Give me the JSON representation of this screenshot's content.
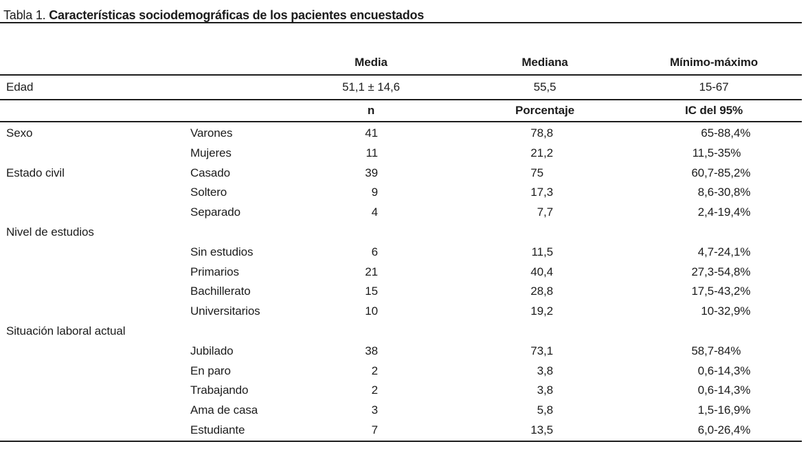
{
  "title": {
    "prefix": "Tabla 1.",
    "text": " Características sociodemográficas de los pacientes encuestados"
  },
  "stats_header": {
    "media": "Media",
    "mediana": "Mediana",
    "minmax": "Mínimo-máximo"
  },
  "edad_row": {
    "label": "Edad",
    "media": "51,1 ± 14,6",
    "mediana": "55,5",
    "minmax": "15-67"
  },
  "freq_header": {
    "n": "n",
    "porcentaje": "Porcentaje",
    "ic": "IC del 95%"
  },
  "rows": [
    {
      "category": "Sexo",
      "item": "Varones",
      "n": "41",
      "porcentaje": "78,8",
      "ic": "65-88,4%"
    },
    {
      "category": "",
      "item": "Mujeres",
      "n": "11",
      "porcentaje": "21,2",
      "ic": "11,5-35%"
    },
    {
      "category": "Estado civil",
      "item": "Casado",
      "n": "39",
      "porcentaje": "75",
      "ic": "60,7-85,2%"
    },
    {
      "category": "",
      "item": "Soltero",
      "n": "9",
      "porcentaje": "17,3",
      "ic": "8,6-30,8%"
    },
    {
      "category": "",
      "item": "Separado",
      "n": "4",
      "porcentaje": "7,7",
      "ic": "2,4-19,4%"
    },
    {
      "category": "Nivel de estudios",
      "item": "",
      "n": "",
      "porcentaje": "",
      "ic": ""
    },
    {
      "category": "",
      "item": "Sin estudios",
      "n": "6",
      "porcentaje": "11,5",
      "ic": "4,7-24,1%"
    },
    {
      "category": "",
      "item": "Primarios",
      "n": "21",
      "porcentaje": "40,4",
      "ic": "27,3-54,8%"
    },
    {
      "category": "",
      "item": "Bachillerato",
      "n": "15",
      "porcentaje": "28,8",
      "ic": "17,5-43,2%"
    },
    {
      "category": "",
      "item": "Universitarios",
      "n": "10",
      "porcentaje": "19,2",
      "ic": "10-32,9%"
    },
    {
      "category": "Situación laboral actual",
      "item": "",
      "n": "",
      "porcentaje": "",
      "ic": ""
    },
    {
      "category": "",
      "item": "Jubilado",
      "n": "38",
      "porcentaje": "73,1",
      "ic": "58,7-84%"
    },
    {
      "category": "",
      "item": "En paro",
      "n": "2",
      "porcentaje": "3,8",
      "ic": "0,6-14,3%"
    },
    {
      "category": "",
      "item": "Trabajando",
      "n": "2",
      "porcentaje": "3,8",
      "ic": "0,6-14,3%"
    },
    {
      "category": "",
      "item": "Ama de casa",
      "n": "3",
      "porcentaje": "5,8",
      "ic": "1,5-16,9%"
    },
    {
      "category": "",
      "item": "Estudiante",
      "n": "7",
      "porcentaje": "13,5",
      "ic": "6,0-26,4%"
    }
  ],
  "colors": {
    "text": "#1c1c1c",
    "rule": "#1c1c1c",
    "background": "#ffffff"
  }
}
